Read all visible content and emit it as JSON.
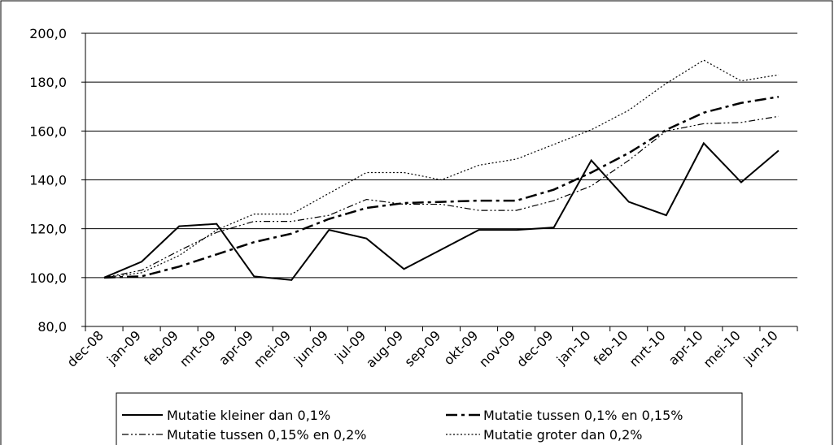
{
  "chart_data": {
    "type": "line",
    "categories": [
      "dec-08",
      "jan-09",
      "feb-09",
      "mrt-09",
      "apr-09",
      "mei-09",
      "jun-09",
      "jul-09",
      "aug-09",
      "sep-09",
      "okt-09",
      "nov-09",
      "dec-09",
      "jan-10",
      "feb-10",
      "mrt-10",
      "apr-10",
      "mei-10",
      "jun-10"
    ],
    "series": [
      {
        "name": "Mutatie kleiner dan 0,1%",
        "color": "#000000",
        "style": "solid",
        "values": [
          100,
          106.5,
          121,
          122,
          100.5,
          99,
          119.5,
          116,
          103.5,
          111.5,
          119.5,
          119.5,
          120.5,
          148,
          131,
          125.5,
          155,
          139,
          152
        ]
      },
      {
        "name": "Mutatie tussen 0,1% en 0,15%",
        "color": "#000000",
        "style": "dashed",
        "values": [
          100,
          100.5,
          104.5,
          109.5,
          114.5,
          118,
          124,
          128.5,
          130.5,
          131,
          131.5,
          131.5,
          136,
          143,
          151,
          160.5,
          167.5,
          171.5,
          174
        ]
      },
      {
        "name": "Mutatie tussen 0,15% en 0,2%",
        "color": "#000000",
        "style": "dashdot",
        "values": [
          100,
          103,
          111,
          118.5,
          123,
          123,
          125.5,
          132,
          130,
          130,
          127.5,
          127.5,
          131.5,
          137.5,
          148,
          160,
          163,
          163.5,
          166
        ]
      },
      {
        "name": "Mutatie groter dan 0,2%",
        "color": "#000000",
        "style": "dotted",
        "values": [
          100,
          102,
          109,
          119.5,
          126,
          126,
          134.5,
          143,
          143,
          140,
          146,
          148.5,
          154.5,
          160.5,
          168.5,
          179.5,
          189,
          180.5,
          183
        ]
      }
    ],
    "ylim": [
      80,
      200
    ],
    "yticks": [
      {
        "value": 80,
        "label": "80,0"
      },
      {
        "value": 100,
        "label": "100,0"
      },
      {
        "value": 120,
        "label": "120,0"
      },
      {
        "value": 140,
        "label": "140,0"
      },
      {
        "value": 160,
        "label": "160,0"
      },
      {
        "value": 180,
        "label": "180,0"
      },
      {
        "value": 200,
        "label": "200,0"
      }
    ],
    "grid": true,
    "legend": "bottom"
  }
}
